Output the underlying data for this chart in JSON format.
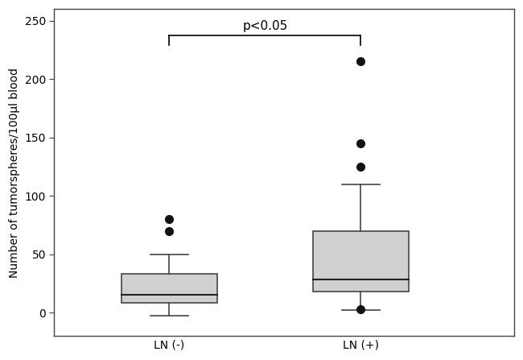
{
  "groups": [
    "LN (-)",
    "LN (+)"
  ],
  "box1": {
    "median": 15,
    "q1": 8,
    "q3": 33,
    "whisker_low": -3,
    "whisker_high": 50,
    "outliers": [
      70,
      80
    ]
  },
  "box2": {
    "median": 28,
    "q1": 18,
    "q3": 70,
    "whisker_low": 2,
    "whisker_high": 110,
    "outliers": [
      3,
      125,
      145,
      215
    ]
  },
  "ylim": [
    -20,
    260
  ],
  "yticks": [
    0,
    50,
    100,
    150,
    200,
    250
  ],
  "ylabel": "Number of tumorspheres/100µl blood",
  "box_color": "#d0d0d0",
  "box_edge_color": "#444444",
  "median_color": "#222222",
  "whisker_color": "#444444",
  "outlier_color": "#111111",
  "significance_text": "p<0.05",
  "sig_line_y": 237,
  "sig_x1": 1,
  "sig_x2": 2,
  "background_color": "#ffffff",
  "box_width": 0.5,
  "positions": [
    1,
    2
  ],
  "xlim": [
    0.4,
    2.8
  ]
}
